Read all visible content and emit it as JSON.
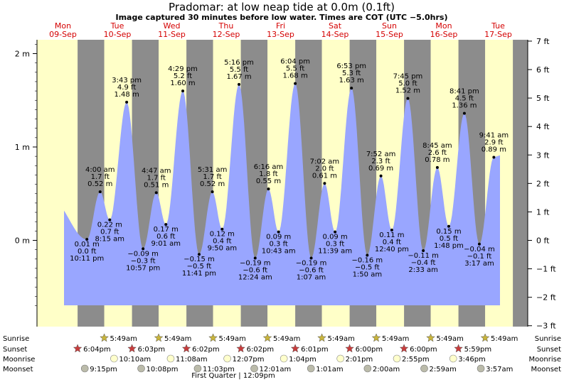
{
  "header": {
    "title": "Pradomar: at low  neap tide at 0.0m (0.1ft)",
    "subtitle": "Image captured 30 minutes before low water. Times are COT (UTC −5.0hrs)"
  },
  "days": [
    {
      "name": "Mon",
      "date": "09-Sep"
    },
    {
      "name": "Tue",
      "date": "10-Sep"
    },
    {
      "name": "Wed",
      "date": "11-Sep"
    },
    {
      "name": "Thu",
      "date": "12-Sep"
    },
    {
      "name": "Fri",
      "date": "13-Sep"
    },
    {
      "name": "Sat",
      "date": "14-Sep"
    },
    {
      "name": "Sun",
      "date": "15-Sep"
    },
    {
      "name": "Mon",
      "date": "16-Sep"
    },
    {
      "name": "Tue",
      "date": "17-Sep"
    }
  ],
  "colors": {
    "day": "#ffffc8",
    "night": "#8c8c8c",
    "tide": "#99a6ff",
    "day_label": "#d40000"
  },
  "chart_data": {
    "type": "area",
    "title": "Pradomar: at low  neap tide at 0.0m (0.1ft)",
    "x_unit": "days from 09-Sep 00:00",
    "left_axis": {
      "unit": "m",
      "range": [
        -0.75,
        2.15
      ],
      "ticks": [
        {
          "v": 2,
          "label": "2 m"
        },
        {
          "v": 1,
          "label": "1 m"
        },
        {
          "v": 0,
          "label": "0 m"
        }
      ]
    },
    "right_axis": {
      "unit": "ft",
      "ticks": [
        "7 ft",
        "6 ft",
        "5 ft",
        "4 ft",
        "3 ft",
        "2 ft",
        "1 ft",
        "0 ft",
        "−1 ft",
        "−2 ft",
        "−3 ft"
      ]
    },
    "tides": [
      {
        "time": "10:11 pm",
        "day": 0,
        "hour": 22.18,
        "m": 0.01,
        "ft": "0.0 ft",
        "mlabel": "0.01 m",
        "type": "low"
      },
      {
        "time": "3:43 pm",
        "day": 1,
        "hour": 15.72,
        "m": 1.48,
        "ft": "4.9 ft",
        "mlabel": "1.48 m",
        "type": "high"
      },
      {
        "time": "4:00 am",
        "day": 1,
        "hour": 4.0,
        "m": 0.52,
        "ft": "1.7 ft",
        "mlabel": "0.52 m",
        "type": "high"
      },
      {
        "time": "8:15 am",
        "day": 1,
        "hour": 8.25,
        "m": 0.22,
        "ft": "0.7 ft",
        "mlabel": "0.22 m",
        "type": "low"
      },
      {
        "time": "10:57 pm",
        "day": 1,
        "hour": 22.95,
        "m": -0.09,
        "ft": "−0.3 ft",
        "mlabel": "−0.09 m",
        "type": "low"
      },
      {
        "time": "4:29 pm",
        "day": 2,
        "hour": 16.48,
        "m": 1.6,
        "ft": "5.2 ft",
        "mlabel": "1.60 m",
        "type": "high"
      },
      {
        "time": "4:47 am",
        "day": 2,
        "hour": 4.78,
        "m": 0.51,
        "ft": "1.7 ft",
        "mlabel": "0.51 m",
        "type": "high"
      },
      {
        "time": "9:01 am",
        "day": 2,
        "hour": 9.02,
        "m": 0.17,
        "ft": "0.6 ft",
        "mlabel": "0.17 m",
        "type": "low"
      },
      {
        "time": "11:41 pm",
        "day": 2,
        "hour": 23.68,
        "m": -0.15,
        "ft": "−0.5 ft",
        "mlabel": "−0.15 m",
        "type": "low"
      },
      {
        "time": "5:16 pm",
        "day": 3,
        "hour": 17.27,
        "m": 1.67,
        "ft": "5.5 ft",
        "mlabel": "1.67 m",
        "type": "high"
      },
      {
        "time": "5:31 am",
        "day": 3,
        "hour": 5.52,
        "m": 0.52,
        "ft": "1.7 ft",
        "mlabel": "0.52 m",
        "type": "high"
      },
      {
        "time": "9:50 am",
        "day": 3,
        "hour": 9.83,
        "m": 0.12,
        "ft": "0.4 ft",
        "mlabel": "0.12 m",
        "type": "low"
      },
      {
        "time": "12:24 am",
        "day": 4,
        "hour": 0.4,
        "m": -0.19,
        "ft": "−0.6 ft",
        "mlabel": "−0.19 m",
        "type": "low"
      },
      {
        "time": "6:04 pm",
        "day": 4,
        "hour": 18.07,
        "m": 1.68,
        "ft": "5.5 ft",
        "mlabel": "1.68 m",
        "type": "high"
      },
      {
        "time": "6:16 am",
        "day": 4,
        "hour": 6.27,
        "m": 0.55,
        "ft": "1.8 ft",
        "mlabel": "0.55 m",
        "type": "high"
      },
      {
        "time": "10:43 am",
        "day": 4,
        "hour": 10.72,
        "m": 0.09,
        "ft": "0.3 ft",
        "mlabel": "0.09 m",
        "type": "low"
      },
      {
        "time": "1:07 am",
        "day": 5,
        "hour": 1.12,
        "m": -0.19,
        "ft": "−0.6 ft",
        "mlabel": "−0.19 m",
        "type": "low"
      },
      {
        "time": "6:53 pm",
        "day": 5,
        "hour": 18.88,
        "m": 1.63,
        "ft": "5.3 ft",
        "mlabel": "1.63 m",
        "type": "high"
      },
      {
        "time": "7:02 am",
        "day": 5,
        "hour": 7.03,
        "m": 0.61,
        "ft": "2.0 ft",
        "mlabel": "0.61 m",
        "type": "high"
      },
      {
        "time": "11:39 am",
        "day": 5,
        "hour": 11.65,
        "m": 0.09,
        "ft": "0.3 ft",
        "mlabel": "0.09 m",
        "type": "low"
      },
      {
        "time": "1:50 am",
        "day": 6,
        "hour": 1.83,
        "m": -0.16,
        "ft": "−0.5 ft",
        "mlabel": "−0.16 m",
        "type": "low"
      },
      {
        "time": "7:45 pm",
        "day": 6,
        "hour": 19.75,
        "m": 1.52,
        "ft": "5.0 ft",
        "mlabel": "1.52 m",
        "type": "high"
      },
      {
        "time": "7:52 am",
        "day": 6,
        "hour": 7.87,
        "m": 0.69,
        "ft": "2.3 ft",
        "mlabel": "0.69 m",
        "type": "high"
      },
      {
        "time": "12:40 pm",
        "day": 6,
        "hour": 12.67,
        "m": 0.11,
        "ft": "0.4 ft",
        "mlabel": "0.11 m",
        "type": "low"
      },
      {
        "time": "2:33 am",
        "day": 7,
        "hour": 2.55,
        "m": -0.11,
        "ft": "−0.4 ft",
        "mlabel": "−0.11 m",
        "type": "low"
      },
      {
        "time": "8:41 pm",
        "day": 7,
        "hour": 20.68,
        "m": 1.36,
        "ft": "4.5 ft",
        "mlabel": "1.36 m",
        "type": "high"
      },
      {
        "time": "8:45 am",
        "day": 7,
        "hour": 8.75,
        "m": 0.78,
        "ft": "2.6 ft",
        "mlabel": "0.78 m",
        "type": "high"
      },
      {
        "time": "1:48 pm",
        "day": 7,
        "hour": 13.8,
        "m": 0.15,
        "ft": "0.5 ft",
        "mlabel": "0.15 m",
        "type": "low"
      },
      {
        "time": "3:17 am",
        "day": 8,
        "hour": 3.28,
        "m": -0.04,
        "ft": "−0.1 ft",
        "mlabel": "−0.04 m",
        "type": "low"
      },
      {
        "time": "9:41 am",
        "day": 8,
        "hour": 9.68,
        "m": 0.89,
        "ft": "2.9 ft",
        "mlabel": "0.89 m",
        "type": "high"
      }
    ]
  },
  "footer": {
    "rows": [
      {
        "label": "Sunrise"
      },
      {
        "label": "Sunset"
      },
      {
        "label": "Moonrise"
      },
      {
        "label": "Moonset"
      }
    ],
    "sunrise": [
      {
        "day": 1,
        "time": "5:49am"
      },
      {
        "day": 2,
        "time": "5:49am"
      },
      {
        "day": 3,
        "time": "5:49am"
      },
      {
        "day": 4,
        "time": "5:49am"
      },
      {
        "day": 5,
        "time": "5:49am"
      },
      {
        "day": 6,
        "time": "5:49am"
      },
      {
        "day": 7,
        "time": "5:49am"
      },
      {
        "day": 8,
        "time": "5:49am"
      }
    ],
    "sunset": [
      {
        "day": 0,
        "time": "6:04pm"
      },
      {
        "day": 1,
        "time": "6:03pm"
      },
      {
        "day": 2,
        "time": "6:02pm"
      },
      {
        "day": 3,
        "time": "6:02pm"
      },
      {
        "day": 4,
        "time": "6:01pm"
      },
      {
        "day": 5,
        "time": "6:00pm"
      },
      {
        "day": 6,
        "time": "6:00pm"
      },
      {
        "day": 7,
        "time": "5:59pm"
      }
    ],
    "moonrise": [
      {
        "day": 1,
        "time": "10:10am"
      },
      {
        "day": 2,
        "time": "11:08am"
      },
      {
        "day": 3,
        "time": "12:07pm"
      },
      {
        "day": 4,
        "time": "1:04pm"
      },
      {
        "day": 5,
        "time": "2:01pm"
      },
      {
        "day": 6,
        "time": "2:55pm"
      },
      {
        "day": 7,
        "time": "3:46pm"
      }
    ],
    "moonset": [
      {
        "day": 0,
        "time": "9:15pm"
      },
      {
        "day": 1,
        "time": "10:08pm"
      },
      {
        "day": 2,
        "time": "11:03pm"
      },
      {
        "day": 4,
        "time": "12:01am"
      },
      {
        "day": 5,
        "time": "1:01am"
      },
      {
        "day": 6,
        "time": "2:00am"
      },
      {
        "day": 7,
        "time": "2:59am"
      },
      {
        "day": 8,
        "time": "3:57am"
      }
    ],
    "moon_phase": "First Quarter | 12:09pm"
  }
}
